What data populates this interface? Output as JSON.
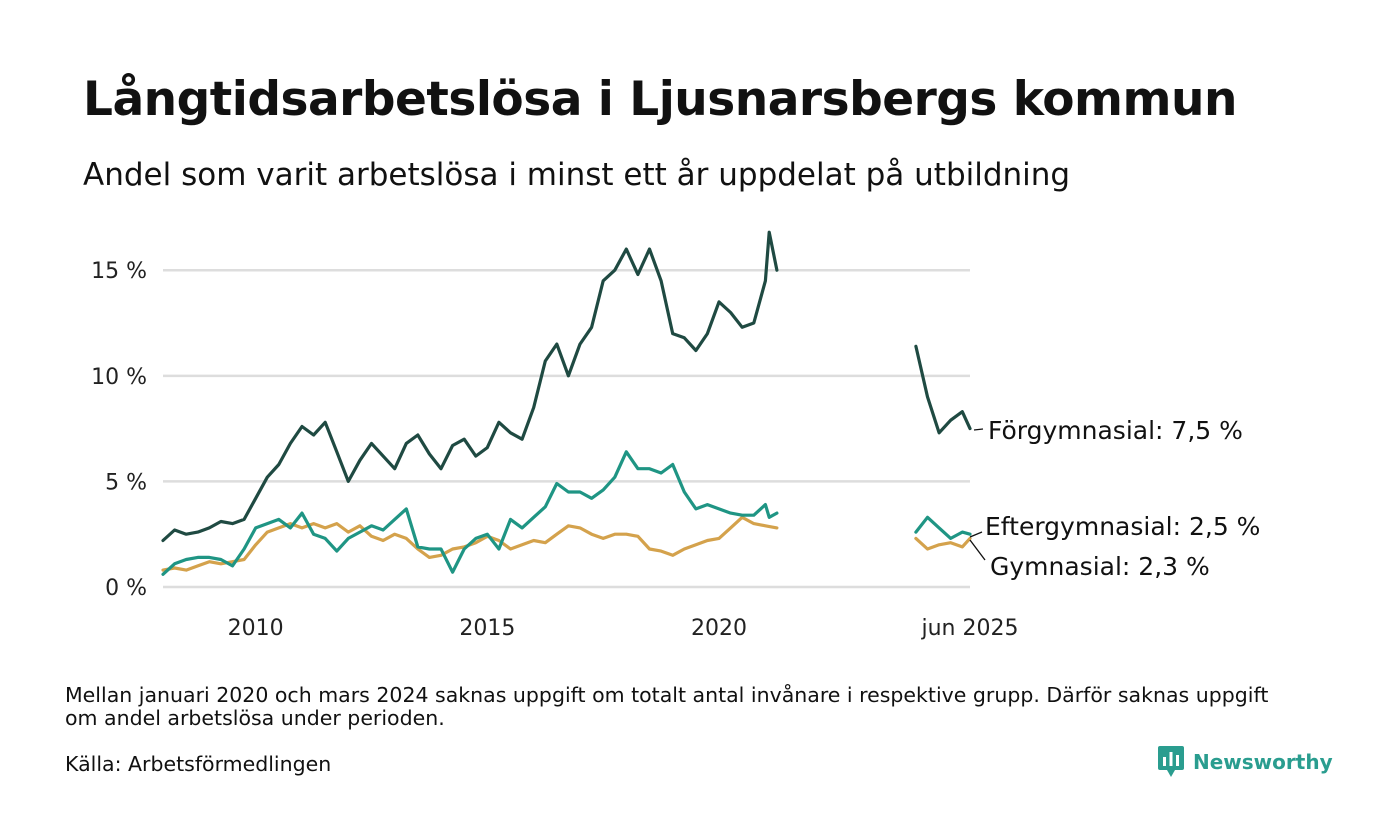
{
  "header": {
    "title": "Långtidsarbetslösa i Ljusnarsbergs kommun",
    "subtitle": "Andel som varit arbetslösa i minst ett år uppdelat på utbildning"
  },
  "footer": {
    "note": "Mellan januari 2020 och mars 2024 saknas uppgift om totalt antal invånare i respektive grupp. Därför saknas uppgift om andel arbetslösa under perioden.",
    "source": "Källa: Arbetsförmedlingen",
    "brand": "Newsworthy"
  },
  "chart_data": {
    "type": "line",
    "title": "Långtidsarbetslösa i Ljusnarsbergs kommun",
    "subtitle": "Andel som varit arbetslösa i minst ett år uppdelat på utbildning",
    "xlabel": "",
    "ylabel": "",
    "ylim": [
      0,
      17
    ],
    "xlim": [
      "2008-01",
      "2025-06"
    ],
    "y_ticks": [
      0,
      5,
      10,
      15
    ],
    "y_tick_labels": [
      "0 %",
      "5 %",
      "10 %",
      "15 %"
    ],
    "x_ticks": [
      "2010-01",
      "2015-01",
      "2020-01",
      "2025-06"
    ],
    "x_tick_labels": [
      "2010",
      "2015",
      "2020",
      "jun 2025"
    ],
    "grid": "horizontal",
    "colors": {
      "Förgymnasial": "#1f4a42",
      "Eftergymnasial": "#1f9584",
      "Gymnasial": "#d4a24c",
      "gridline": "#dddddd",
      "brand": "#2a9d8f"
    },
    "series": [
      {
        "name": "Förgymnasial",
        "end_label": "Förgymnasial: 7,5 %",
        "segments": [
          [
            [
              "2008-01",
              2.2
            ],
            [
              "2008-04",
              2.7
            ],
            [
              "2008-07",
              2.5
            ],
            [
              "2008-10",
              2.6
            ],
            [
              "2009-01",
              2.8
            ],
            [
              "2009-04",
              3.1
            ],
            [
              "2009-07",
              3.0
            ],
            [
              "2009-10",
              3.2
            ],
            [
              "2010-01",
              4.2
            ],
            [
              "2010-04",
              5.2
            ],
            [
              "2010-07",
              5.8
            ],
            [
              "2010-10",
              6.8
            ],
            [
              "2011-01",
              7.6
            ],
            [
              "2011-04",
              7.2
            ],
            [
              "2011-07",
              7.8
            ],
            [
              "2011-10",
              6.4
            ],
            [
              "2012-01",
              5.0
            ],
            [
              "2012-04",
              6.0
            ],
            [
              "2012-07",
              6.8
            ],
            [
              "2012-10",
              6.2
            ],
            [
              "2013-01",
              5.6
            ],
            [
              "2013-04",
              6.8
            ],
            [
              "2013-07",
              7.2
            ],
            [
              "2013-10",
              6.3
            ],
            [
              "2014-01",
              5.6
            ],
            [
              "2014-04",
              6.7
            ],
            [
              "2014-07",
              7.0
            ],
            [
              "2014-10",
              6.2
            ],
            [
              "2015-01",
              6.6
            ],
            [
              "2015-04",
              7.8
            ],
            [
              "2015-07",
              7.3
            ],
            [
              "2015-10",
              7.0
            ],
            [
              "2016-01",
              8.5
            ],
            [
              "2016-04",
              10.7
            ],
            [
              "2016-07",
              11.5
            ],
            [
              "2016-10",
              10.0
            ],
            [
              "2017-01",
              11.5
            ],
            [
              "2017-04",
              12.3
            ],
            [
              "2017-07",
              14.5
            ],
            [
              "2017-10",
              15.0
            ],
            [
              "2018-01",
              16.0
            ],
            [
              "2018-04",
              14.8
            ],
            [
              "2018-07",
              16.0
            ],
            [
              "2018-10",
              14.5
            ],
            [
              "2019-01",
              12.0
            ],
            [
              "2019-04",
              11.8
            ],
            [
              "2019-07",
              11.2
            ],
            [
              "2019-10",
              12.0
            ],
            [
              "2020-01",
              13.5
            ],
            [
              "2020-04",
              13.0
            ],
            [
              "2020-07",
              12.3
            ],
            [
              "2020-10",
              12.5
            ],
            [
              "2021-01",
              14.5
            ],
            [
              "2021-02",
              16.8
            ],
            [
              "2021-04",
              15.0
            ]
          ],
          [
            [
              "2024-04",
              11.4
            ],
            [
              "2024-07",
              9.0
            ],
            [
              "2024-10",
              7.3
            ],
            [
              "2025-01",
              7.9
            ],
            [
              "2025-04",
              8.3
            ],
            [
              "2025-06",
              7.5
            ]
          ]
        ]
      },
      {
        "name": "Eftergymnasial",
        "end_label": "Eftergymnasial: 2,5 %",
        "segments": [
          [
            [
              "2008-01",
              0.6
            ],
            [
              "2008-04",
              1.1
            ],
            [
              "2008-07",
              1.3
            ],
            [
              "2008-10",
              1.4
            ],
            [
              "2009-01",
              1.4
            ],
            [
              "2009-04",
              1.3
            ],
            [
              "2009-07",
              1.0
            ],
            [
              "2009-10",
              1.8
            ],
            [
              "2010-01",
              2.8
            ],
            [
              "2010-04",
              3.0
            ],
            [
              "2010-07",
              3.2
            ],
            [
              "2010-10",
              2.8
            ],
            [
              "2011-01",
              3.5
            ],
            [
              "2011-04",
              2.5
            ],
            [
              "2011-07",
              2.3
            ],
            [
              "2011-10",
              1.7
            ],
            [
              "2012-01",
              2.3
            ],
            [
              "2012-04",
              2.6
            ],
            [
              "2012-07",
              2.9
            ],
            [
              "2012-10",
              2.7
            ],
            [
              "2013-01",
              3.2
            ],
            [
              "2013-04",
              3.7
            ],
            [
              "2013-07",
              1.9
            ],
            [
              "2013-10",
              1.8
            ],
            [
              "2014-01",
              1.8
            ],
            [
              "2014-04",
              0.7
            ],
            [
              "2014-07",
              1.8
            ],
            [
              "2014-10",
              2.3
            ],
            [
              "2015-01",
              2.5
            ],
            [
              "2015-04",
              1.8
            ],
            [
              "2015-07",
              3.2
            ],
            [
              "2015-10",
              2.8
            ],
            [
              "2016-01",
              3.3
            ],
            [
              "2016-04",
              3.8
            ],
            [
              "2016-07",
              4.9
            ],
            [
              "2016-10",
              4.5
            ],
            [
              "2017-01",
              4.5
            ],
            [
              "2017-04",
              4.2
            ],
            [
              "2017-07",
              4.6
            ],
            [
              "2017-10",
              5.2
            ],
            [
              "2018-01",
              6.4
            ],
            [
              "2018-04",
              5.6
            ],
            [
              "2018-07",
              5.6
            ],
            [
              "2018-10",
              5.4
            ],
            [
              "2019-01",
              5.8
            ],
            [
              "2019-04",
              4.5
            ],
            [
              "2019-07",
              3.7
            ],
            [
              "2019-10",
              3.9
            ],
            [
              "2020-01",
              3.7
            ],
            [
              "2020-04",
              3.5
            ],
            [
              "2020-07",
              3.4
            ],
            [
              "2020-10",
              3.4
            ],
            [
              "2021-01",
              3.9
            ],
            [
              "2021-02",
              3.3
            ],
            [
              "2021-04",
              3.5
            ]
          ],
          [
            [
              "2024-04",
              2.6
            ],
            [
              "2024-07",
              3.3
            ],
            [
              "2024-10",
              2.8
            ],
            [
              "2025-01",
              2.3
            ],
            [
              "2025-04",
              2.6
            ],
            [
              "2025-06",
              2.5
            ]
          ]
        ]
      },
      {
        "name": "Gymnasial",
        "end_label": "Gymnasial: 2,3 %",
        "segments": [
          [
            [
              "2008-01",
              0.8
            ],
            [
              "2008-04",
              0.9
            ],
            [
              "2008-07",
              0.8
            ],
            [
              "2008-10",
              1.0
            ],
            [
              "2009-01",
              1.2
            ],
            [
              "2009-04",
              1.1
            ],
            [
              "2009-07",
              1.2
            ],
            [
              "2009-10",
              1.3
            ],
            [
              "2010-01",
              2.0
            ],
            [
              "2010-04",
              2.6
            ],
            [
              "2010-07",
              2.8
            ],
            [
              "2010-10",
              3.0
            ],
            [
              "2011-01",
              2.8
            ],
            [
              "2011-04",
              3.0
            ],
            [
              "2011-07",
              2.8
            ],
            [
              "2011-10",
              3.0
            ],
            [
              "2012-01",
              2.6
            ],
            [
              "2012-04",
              2.9
            ],
            [
              "2012-07",
              2.4
            ],
            [
              "2012-10",
              2.2
            ],
            [
              "2013-01",
              2.5
            ],
            [
              "2013-04",
              2.3
            ],
            [
              "2013-07",
              1.8
            ],
            [
              "2013-10",
              1.4
            ],
            [
              "2014-01",
              1.5
            ],
            [
              "2014-04",
              1.8
            ],
            [
              "2014-07",
              1.9
            ],
            [
              "2014-10",
              2.1
            ],
            [
              "2015-01",
              2.4
            ],
            [
              "2015-04",
              2.2
            ],
            [
              "2015-07",
              1.8
            ],
            [
              "2015-10",
              2.0
            ],
            [
              "2016-01",
              2.2
            ],
            [
              "2016-04",
              2.1
            ],
            [
              "2016-07",
              2.5
            ],
            [
              "2016-10",
              2.9
            ],
            [
              "2017-01",
              2.8
            ],
            [
              "2017-04",
              2.5
            ],
            [
              "2017-07",
              2.3
            ],
            [
              "2017-10",
              2.5
            ],
            [
              "2018-01",
              2.5
            ],
            [
              "2018-04",
              2.4
            ],
            [
              "2018-07",
              1.8
            ],
            [
              "2018-10",
              1.7
            ],
            [
              "2019-01",
              1.5
            ],
            [
              "2019-04",
              1.8
            ],
            [
              "2019-07",
              2.0
            ],
            [
              "2019-10",
              2.2
            ],
            [
              "2020-01",
              2.3
            ],
            [
              "2020-04",
              2.8
            ],
            [
              "2020-07",
              3.3
            ],
            [
              "2020-10",
              3.0
            ],
            [
              "2021-01",
              2.9
            ],
            [
              "2021-04",
              2.8
            ]
          ],
          [
            [
              "2024-04",
              2.3
            ],
            [
              "2024-07",
              1.8
            ],
            [
              "2024-10",
              2.0
            ],
            [
              "2025-01",
              2.1
            ],
            [
              "2025-04",
              1.9
            ],
            [
              "2025-06",
              2.3
            ]
          ]
        ]
      }
    ]
  }
}
